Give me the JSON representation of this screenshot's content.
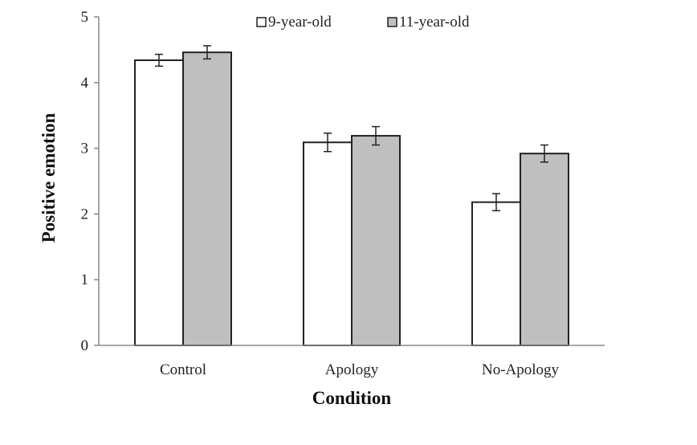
{
  "chart_data": {
    "type": "bar",
    "categories": [
      "Control",
      "Apology",
      "No-Apology"
    ],
    "series": [
      {
        "name": "9-year-old",
        "values": [
          4.34,
          3.09,
          2.18
        ],
        "errors": [
          0.09,
          0.14,
          0.13
        ],
        "color": "#ffffff"
      },
      {
        "name": "11-year-old",
        "values": [
          4.46,
          3.19,
          2.92
        ],
        "errors": [
          0.1,
          0.14,
          0.13
        ],
        "color": "#bfbfbf"
      }
    ],
    "xlabel": "Condition",
    "ylabel": "Positive emotion",
    "ylim": [
      0,
      5
    ],
    "yticks": [
      "0",
      "1",
      "2",
      "3",
      "4",
      "5"
    ],
    "grid": false,
    "legend": "top-center",
    "bar_edge_color": "#222222"
  }
}
